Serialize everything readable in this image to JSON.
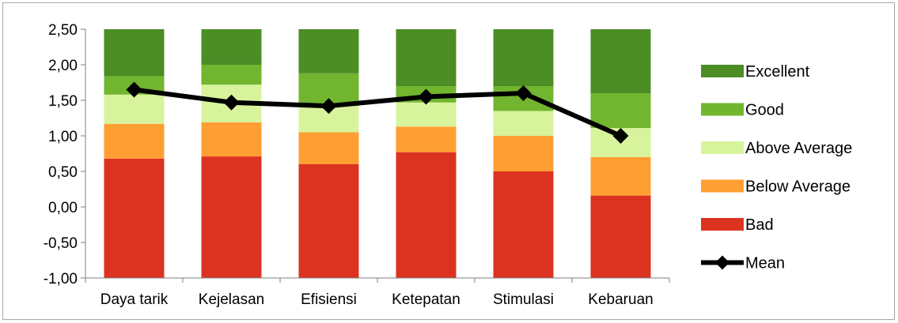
{
  "chart_data": {
    "type": "bar",
    "stacked": true,
    "categories": [
      "Daya tarik",
      "Kejelasan",
      "Efisiensi",
      "Ketepatan",
      "Stimulasi",
      "Kebaruan"
    ],
    "ylim": [
      -1.0,
      2.5
    ],
    "yticks": [
      "-1,00",
      "-0,50",
      "0,00",
      "0,50",
      "1,00",
      "1,50",
      "2,00",
      "2,50"
    ],
    "ytick_values": [
      -1.0,
      -0.5,
      0.0,
      0.5,
      1.0,
      1.5,
      2.0,
      2.5
    ],
    "grid": false,
    "legend_position": "right",
    "series": [
      {
        "name": "Bad",
        "color": "#dc3321",
        "bottoms": [
          -1.0,
          -1.0,
          -1.0,
          -1.0,
          -1.0,
          -1.0
        ],
        "tops": [
          0.68,
          0.71,
          0.6,
          0.77,
          0.5,
          0.16
        ]
      },
      {
        "name": "Below Average",
        "color": "#ff9f33",
        "bottoms": [
          0.68,
          0.71,
          0.6,
          0.77,
          0.5,
          0.16
        ],
        "tops": [
          1.17,
          1.19,
          1.05,
          1.13,
          1.0,
          0.7
        ]
      },
      {
        "name": "Above Average",
        "color": "#d7f49c",
        "bottoms": [
          1.17,
          1.19,
          1.05,
          1.13,
          1.0,
          0.7
        ],
        "tops": [
          1.58,
          1.72,
          1.42,
          1.47,
          1.35,
          1.11
        ]
      },
      {
        "name": "Good",
        "color": "#72b52f",
        "bottoms": [
          1.58,
          1.72,
          1.42,
          1.47,
          1.35,
          1.11
        ],
        "tops": [
          1.84,
          2.0,
          1.88,
          1.7,
          1.7,
          1.6
        ]
      },
      {
        "name": "Excellent",
        "color": "#4c8d26",
        "bottoms": [
          1.84,
          2.0,
          1.88,
          1.7,
          1.7,
          1.6
        ],
        "tops": [
          2.5,
          2.5,
          2.5,
          2.5,
          2.5,
          2.5
        ]
      }
    ],
    "line": {
      "name": "Mean",
      "color": "#000000",
      "values": [
        1.65,
        1.47,
        1.42,
        1.55,
        1.6,
        1.0
      ]
    },
    "legend_order": [
      "Excellent",
      "Good",
      "Above Average",
      "Below Average",
      "Bad",
      "Mean"
    ]
  }
}
